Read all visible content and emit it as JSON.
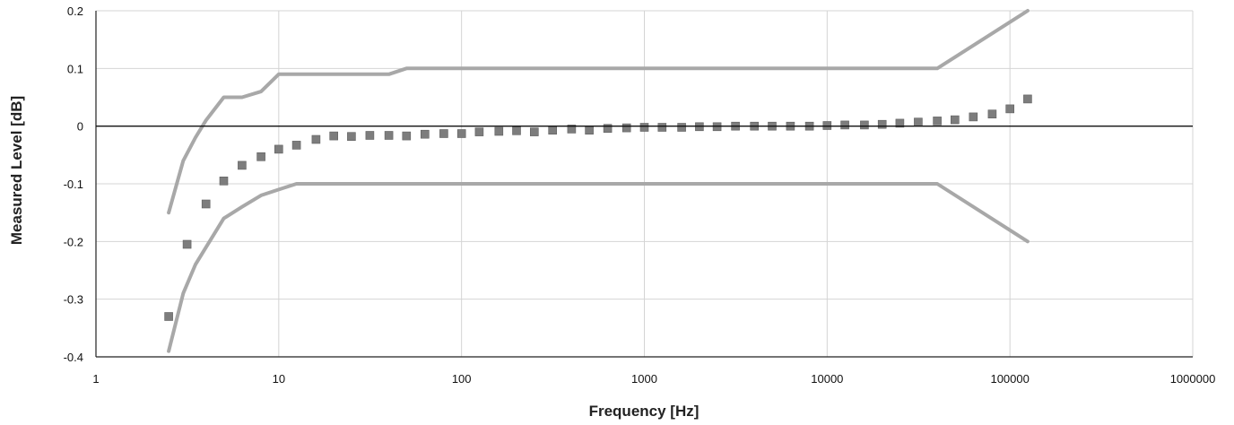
{
  "chart_data": {
    "type": "scatter",
    "title": "",
    "xlabel": "Frequency [Hz]",
    "ylabel": "Measured Level [dB]",
    "x_scale": "log",
    "xlim": [
      1,
      1000000
    ],
    "ylim": [
      -0.4,
      0.2
    ],
    "grid": true,
    "x_ticks": [
      "1",
      "10",
      "100",
      "1000",
      "10000",
      "100000",
      "1000000"
    ],
    "y_ticks": [
      "0.2",
      "0.1",
      "0",
      "-0.1",
      "-0.2",
      "-0.3",
      "-0.4"
    ],
    "zero_line": 0,
    "colors": {
      "limits": "#a8a8a8",
      "points": "#7d7d7d",
      "zero_line": "#111111",
      "grid": "#d4d4d4"
    },
    "series": [
      {
        "type": "line",
        "x": [
          2.5,
          3,
          3.5,
          4,
          5,
          6.3,
          8,
          10,
          20,
          40,
          50,
          100,
          1000,
          10000,
          40000,
          125000
        ],
        "y": [
          -0.15,
          -0.06,
          -0.02,
          0.01,
          0.05,
          0.05,
          0.06,
          0.09,
          0.09,
          0.09,
          0.1,
          0.1,
          0.1,
          0.1,
          0.1,
          0.2
        ]
      },
      {
        "type": "line",
        "x": [
          2.5,
          3,
          3.5,
          4,
          5,
          6.3,
          8,
          10,
          12.5,
          100,
          1000,
          10000,
          40000,
          125000
        ],
        "y": [
          -0.39,
          -0.29,
          -0.24,
          -0.21,
          -0.16,
          -0.14,
          -0.12,
          -0.11,
          -0.1,
          -0.1,
          -0.1,
          -0.1,
          -0.1,
          -0.2
        ]
      },
      {
        "type": "scatter",
        "x": [
          2.5,
          3.15,
          4,
          5,
          6.3,
          8,
          10,
          12.5,
          16,
          20,
          25,
          31.5,
          40,
          50,
          63,
          80,
          100,
          125,
          160,
          200,
          250,
          315,
          400,
          500,
          630,
          800,
          1000,
          1250,
          1600,
          2000,
          2500,
          3150,
          4000,
          5000,
          6300,
          8000,
          10000,
          12500,
          16000,
          20000,
          25000,
          31500,
          40000,
          50000,
          63000,
          80000,
          100000,
          125000
        ],
        "y": [
          -0.33,
          -0.205,
          -0.135,
          -0.095,
          -0.068,
          -0.053,
          -0.04,
          -0.033,
          -0.023,
          -0.017,
          -0.018,
          -0.016,
          -0.016,
          -0.017,
          -0.014,
          -0.013,
          -0.013,
          -0.01,
          -0.009,
          -0.008,
          -0.01,
          -0.007,
          -0.005,
          -0.007,
          -0.004,
          -0.003,
          -0.002,
          -0.002,
          -0.002,
          -0.001,
          -0.001,
          0.0,
          0.0,
          0.0,
          0.0,
          0.0,
          0.001,
          0.002,
          0.002,
          0.003,
          0.005,
          0.007,
          0.009,
          0.011,
          0.016,
          0.021,
          0.03,
          0.047
        ]
      }
    ]
  }
}
